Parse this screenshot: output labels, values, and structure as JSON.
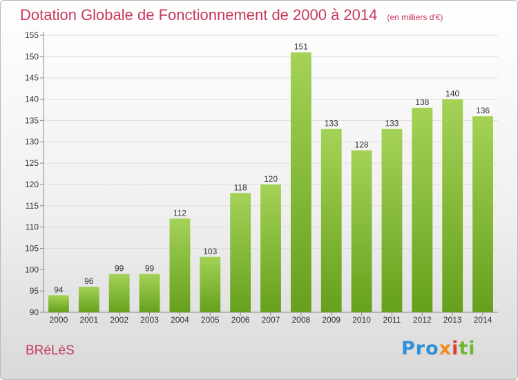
{
  "header": {
    "title": "Dotation Globale de Fonctionnement de 2000 à 2014",
    "subtitle": "(en milliers d'€)"
  },
  "footer": {
    "commune": "BRéLèS",
    "logo": {
      "p1": "Pro",
      "p2": "x",
      "p3": "i",
      "p4": "ti"
    }
  },
  "colors": {
    "bar_top": "#a4d257",
    "bar_bottom": "#66a01c",
    "title": "#c8385a"
  },
  "chart_data": {
    "type": "bar",
    "title": "Dotation Globale de Fonctionnement de 2000 à 2014",
    "subtitle": "(en milliers d'€)",
    "categories": [
      "2000",
      "2001",
      "2002",
      "2003",
      "2004",
      "2005",
      "2006",
      "2007",
      "2008",
      "2009",
      "2010",
      "2011",
      "2012",
      "2013",
      "2014"
    ],
    "values": [
      94,
      96,
      99,
      99,
      112,
      103,
      118,
      120,
      151,
      133,
      128,
      133,
      138,
      140,
      136
    ],
    "ylim": [
      90,
      155
    ],
    "yticks": [
      90,
      95,
      100,
      105,
      110,
      115,
      120,
      125,
      130,
      135,
      140,
      145,
      150,
      155
    ],
    "grid": true,
    "data_labels": true,
    "xlabel": "",
    "ylabel": ""
  }
}
